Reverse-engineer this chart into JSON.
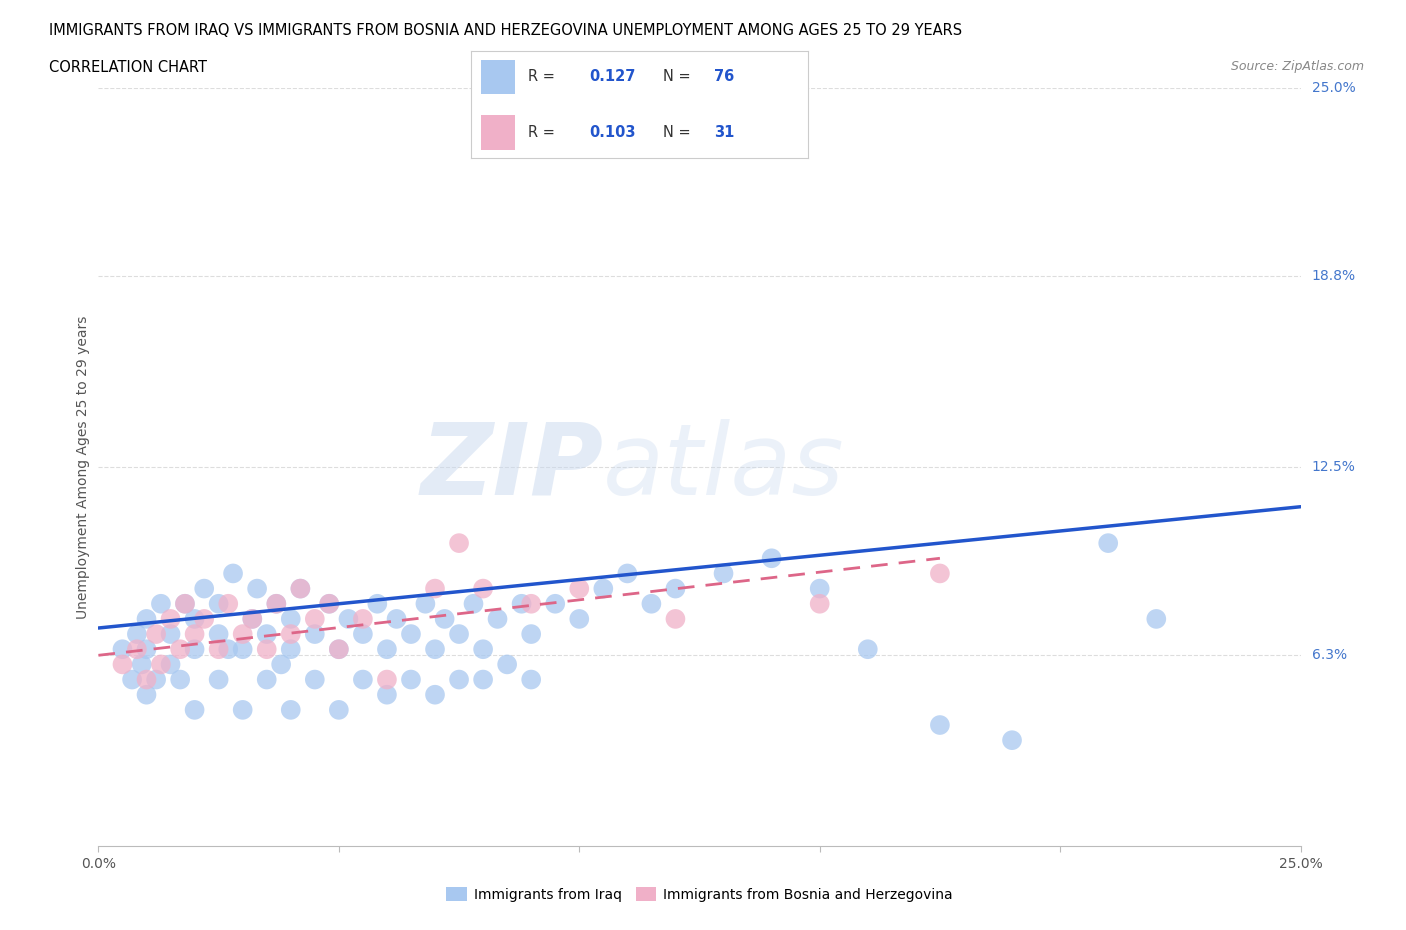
{
  "title_line1": "IMMIGRANTS FROM IRAQ VS IMMIGRANTS FROM BOSNIA AND HERZEGOVINA UNEMPLOYMENT AMONG AGES 25 TO 29 YEARS",
  "title_line2": "CORRELATION CHART",
  "source_text": "Source: ZipAtlas.com",
  "ylabel": "Unemployment Among Ages 25 to 29 years",
  "xlim": [
    0.0,
    0.25
  ],
  "ylim": [
    0.0,
    0.25
  ],
  "ytick_labels_right": [
    "25.0%",
    "18.8%",
    "12.5%",
    "6.3%"
  ],
  "ytick_positions_right": [
    0.25,
    0.188,
    0.125,
    0.063
  ],
  "iraq_R": 0.127,
  "iraq_N": 76,
  "bosnia_R": 0.103,
  "bosnia_N": 31,
  "iraq_color": "#a8c8f0",
  "iraq_line_color": "#2255cc",
  "bosnia_color": "#f0b0c8",
  "bosnia_line_color": "#dd6688",
  "grid_color": "#dddddd",
  "iraq_scatter_x": [
    0.005,
    0.007,
    0.008,
    0.009,
    0.01,
    0.01,
    0.01,
    0.012,
    0.013,
    0.015,
    0.015,
    0.017,
    0.018,
    0.02,
    0.02,
    0.02,
    0.022,
    0.025,
    0.025,
    0.025,
    0.027,
    0.028,
    0.03,
    0.03,
    0.032,
    0.033,
    0.035,
    0.035,
    0.037,
    0.038,
    0.04,
    0.04,
    0.04,
    0.042,
    0.045,
    0.045,
    0.048,
    0.05,
    0.05,
    0.052,
    0.055,
    0.055,
    0.058,
    0.06,
    0.06,
    0.062,
    0.065,
    0.065,
    0.068,
    0.07,
    0.07,
    0.072,
    0.075,
    0.075,
    0.078,
    0.08,
    0.08,
    0.083,
    0.085,
    0.088,
    0.09,
    0.09,
    0.095,
    0.1,
    0.105,
    0.11,
    0.115,
    0.12,
    0.13,
    0.14,
    0.15,
    0.16,
    0.175,
    0.19,
    0.21,
    0.22
  ],
  "iraq_scatter_y": [
    0.065,
    0.055,
    0.07,
    0.06,
    0.05,
    0.065,
    0.075,
    0.055,
    0.08,
    0.06,
    0.07,
    0.055,
    0.08,
    0.045,
    0.065,
    0.075,
    0.085,
    0.055,
    0.07,
    0.08,
    0.065,
    0.09,
    0.045,
    0.065,
    0.075,
    0.085,
    0.055,
    0.07,
    0.08,
    0.06,
    0.045,
    0.065,
    0.075,
    0.085,
    0.055,
    0.07,
    0.08,
    0.045,
    0.065,
    0.075,
    0.055,
    0.07,
    0.08,
    0.05,
    0.065,
    0.075,
    0.055,
    0.07,
    0.08,
    0.05,
    0.065,
    0.075,
    0.055,
    0.07,
    0.08,
    0.055,
    0.065,
    0.075,
    0.06,
    0.08,
    0.055,
    0.07,
    0.08,
    0.075,
    0.085,
    0.09,
    0.08,
    0.085,
    0.09,
    0.095,
    0.085,
    0.065,
    0.04,
    0.035,
    0.1,
    0.075
  ],
  "bosnia_scatter_x": [
    0.005,
    0.008,
    0.01,
    0.012,
    0.013,
    0.015,
    0.017,
    0.018,
    0.02,
    0.022,
    0.025,
    0.027,
    0.03,
    0.032,
    0.035,
    0.037,
    0.04,
    0.042,
    0.045,
    0.048,
    0.05,
    0.055,
    0.06,
    0.07,
    0.075,
    0.08,
    0.09,
    0.1,
    0.12,
    0.15,
    0.175
  ],
  "bosnia_scatter_y": [
    0.06,
    0.065,
    0.055,
    0.07,
    0.06,
    0.075,
    0.065,
    0.08,
    0.07,
    0.075,
    0.065,
    0.08,
    0.07,
    0.075,
    0.065,
    0.08,
    0.07,
    0.085,
    0.075,
    0.08,
    0.065,
    0.075,
    0.055,
    0.085,
    0.1,
    0.085,
    0.08,
    0.085,
    0.075,
    0.08,
    0.09
  ],
  "iraq_line_x": [
    0.0,
    0.25
  ],
  "iraq_line_y": [
    0.072,
    0.112
  ],
  "bosnia_line_x": [
    0.0,
    0.175
  ],
  "bosnia_line_y": [
    0.063,
    0.095
  ]
}
